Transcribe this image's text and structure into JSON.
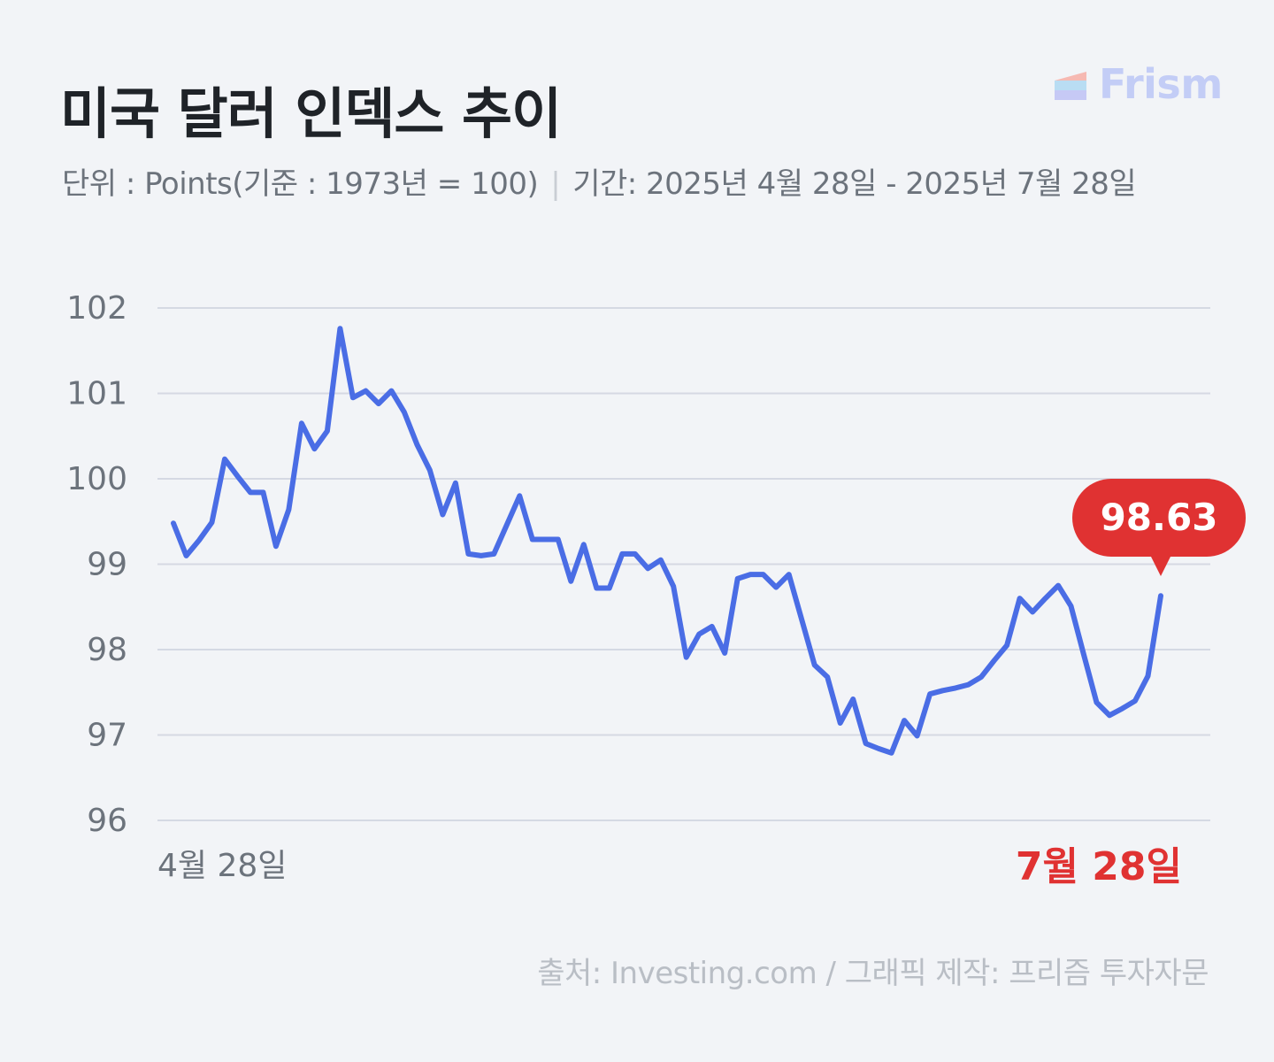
{
  "header": {
    "title": "미국 달러 인덱스 추이",
    "unit_text": "단위 : Points(기준 : 1973년 = 100)",
    "separator": "|",
    "period_text": "기간: 2025년 4월 28일 - 2025년 7월 28일"
  },
  "logo": {
    "text": "Frism",
    "icon": "frism-logo-icon"
  },
  "footer": {
    "source": "출처: Investing.com  / 그래픽 제작: 프리즘 투자자문"
  },
  "colors": {
    "line": "#4a6de5",
    "highlight": "#e03232",
    "grid": "#d5d9e3",
    "axis_text": "#6c737c",
    "logo": "#c3cdf6"
  },
  "chart_data": {
    "type": "line",
    "ylim": [
      96,
      102
    ],
    "y_ticks": [
      "96",
      "97",
      "98",
      "99",
      "100",
      "101",
      "102"
    ],
    "x_start_label": "4월 28일",
    "x_end_label": "7월 28일",
    "last_value_label": "98.63",
    "grid": true,
    "series": [
      {
        "values": [
          99.48,
          99.1,
          99.28,
          99.49,
          100.23,
          100.03,
          99.84,
          99.84,
          99.21,
          99.64,
          100.65,
          100.35,
          100.56,
          101.76,
          100.95,
          101.03,
          100.88,
          101.03,
          100.78,
          100.4,
          100.1,
          99.58,
          99.95,
          99.12,
          99.1,
          99.12,
          99.46,
          99.8,
          99.29,
          99.29,
          99.29,
          98.8,
          99.23,
          98.72,
          98.72,
          99.12,
          99.12,
          98.95,
          99.05,
          98.74,
          97.91,
          98.18,
          98.27,
          97.96,
          98.83,
          98.88,
          98.88,
          98.73,
          98.88,
          98.35,
          97.82,
          97.68,
          97.14,
          97.42,
          96.9,
          96.84,
          96.79,
          97.17,
          96.99,
          97.48,
          97.52,
          97.55,
          97.59,
          97.68,
          97.87,
          98.05,
          98.6,
          98.44,
          98.6,
          98.75,
          98.51,
          97.94,
          97.38,
          97.23,
          97.31,
          97.4,
          97.69,
          98.63
        ]
      }
    ]
  }
}
